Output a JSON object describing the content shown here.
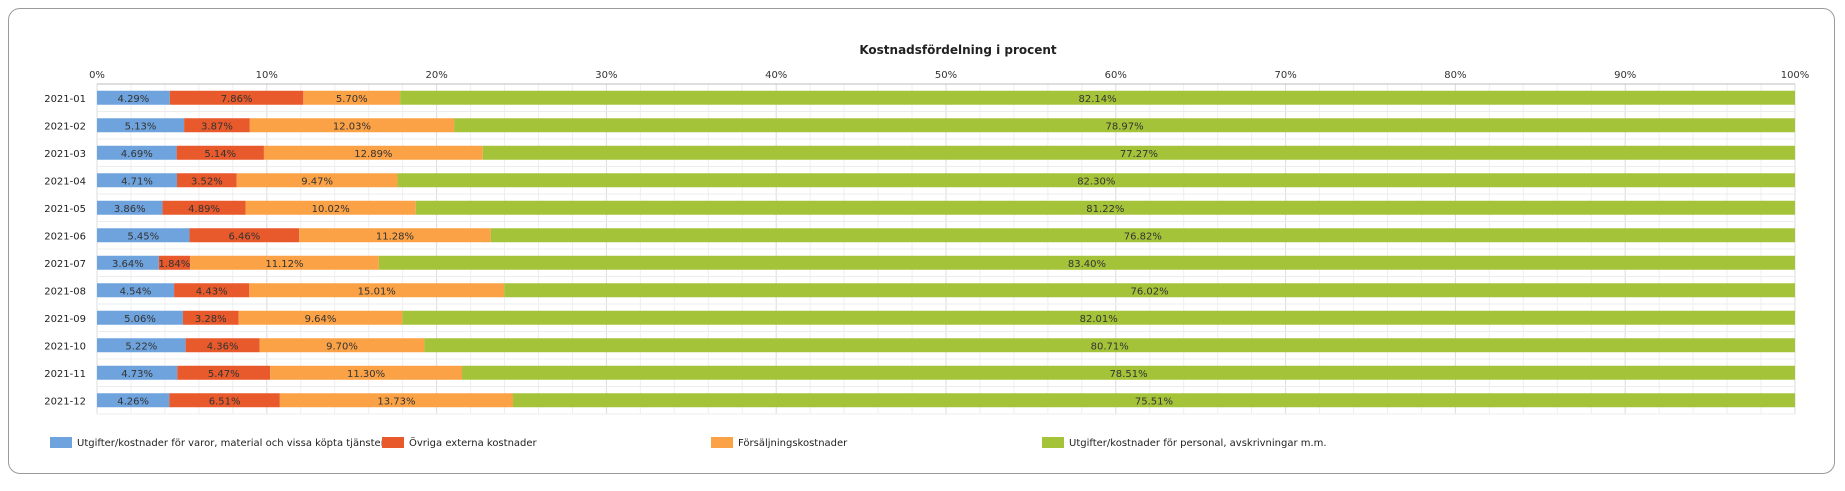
{
  "chart_data": {
    "type": "bar",
    "orientation": "horizontal",
    "stacked": "percent",
    "title": "Kostnadsfördelning i procent",
    "xlim": [
      0,
      100
    ],
    "x_ticks": [
      "0%",
      "10%",
      "20%",
      "30%",
      "40%",
      "50%",
      "60%",
      "70%",
      "80%",
      "90%",
      "100%"
    ],
    "grid": true,
    "legend_position": "bottom",
    "categories": [
      "2021-01",
      "2021-02",
      "2021-03",
      "2021-04",
      "2021-05",
      "2021-06",
      "2021-07",
      "2021-08",
      "2021-09",
      "2021-10",
      "2021-11",
      "2021-12"
    ],
    "series": [
      {
        "name": "Utgifter/kostnader för varor, material och vissa köpta tjänster",
        "color": "#6fa3dd",
        "values": [
          4.29,
          5.13,
          4.69,
          4.71,
          3.86,
          5.45,
          3.64,
          4.54,
          5.06,
          5.22,
          4.73,
          4.26
        ],
        "labels": [
          "4.29%",
          "5.13%",
          "4.69%",
          "4.71%",
          "3.86%",
          "5.45%",
          "3.64%",
          "4.54%",
          "5.06%",
          "5.22%",
          "4.73%",
          "4.26%"
        ]
      },
      {
        "name": "Övriga externa kostnader",
        "color": "#e8592b",
        "values": [
          7.86,
          3.87,
          5.14,
          3.52,
          4.89,
          6.46,
          1.84,
          4.43,
          3.28,
          4.36,
          5.47,
          6.51
        ],
        "labels": [
          "7.86%",
          "3.87%",
          "5.14%",
          "3.52%",
          "4.89%",
          "6.46%",
          "1.84%",
          "4.43%",
          "3.28%",
          "4.36%",
          "5.47%",
          "6.51%"
        ]
      },
      {
        "name": "Försäljningskostnader",
        "color": "#fba246",
        "values": [
          5.7,
          12.03,
          12.89,
          9.47,
          10.02,
          11.28,
          11.12,
          15.01,
          9.64,
          9.7,
          11.3,
          13.73
        ],
        "labels": [
          "5.70%",
          "12.03%",
          "12.89%",
          "9.47%",
          "10.02%",
          "11.28%",
          "11.12%",
          "15.01%",
          "9.64%",
          "9.70%",
          "11.30%",
          "13.73%"
        ]
      },
      {
        "name": "Utgifter/kostnader för personal, avskrivningar m.m.",
        "color": "#a5c339",
        "values": [
          82.14,
          78.97,
          77.27,
          82.3,
          81.22,
          76.82,
          83.4,
          76.02,
          82.01,
          80.71,
          78.51,
          75.51
        ],
        "labels": [
          "82.14%",
          "78.97%",
          "77.27%",
          "82.30%",
          "81.22%",
          "76.82%",
          "83.40%",
          "76.02%",
          "82.01%",
          "80.71%",
          "78.51%",
          "75.51%"
        ]
      }
    ]
  }
}
